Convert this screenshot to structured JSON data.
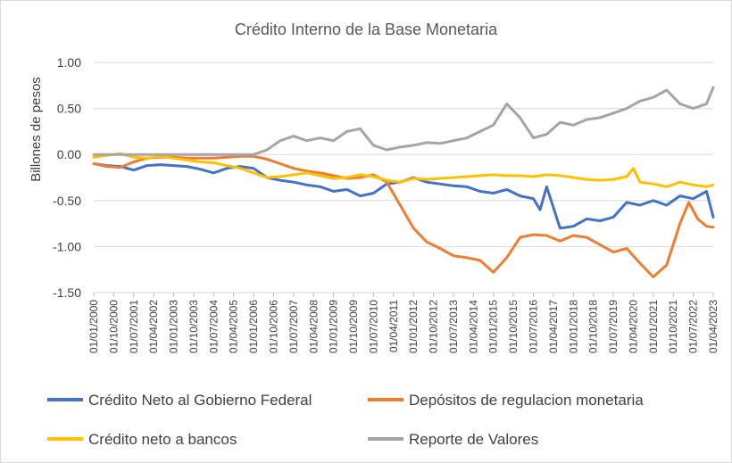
{
  "chart_data": {
    "type": "line",
    "title": "Crédito Interno de la Base Monetaria",
    "xlabel": "",
    "ylabel": "Billones de pesos",
    "ylim": [
      -1.5,
      1.0
    ],
    "yticks": [
      1.0,
      0.5,
      0.0,
      -0.5,
      -1.0,
      -1.5
    ],
    "ytick_labels": [
      "1.00",
      "0.50",
      "0.00",
      "-0.50",
      "-1.00",
      "-1.50"
    ],
    "xlim": [
      "2000-01",
      "2023-04"
    ],
    "x_tick_labels": [
      "01/01/2000",
      "01/10/2000",
      "01/07/2001",
      "01/04/2002",
      "01/01/2003",
      "01/10/2003",
      "01/07/2004",
      "01/04/2005",
      "01/01/2006",
      "01/10/2006",
      "01/07/2007",
      "01/04/2008",
      "01/01/2009",
      "01/10/2009",
      "01/07/2010",
      "01/04/2011",
      "01/01/2012",
      "01/10/2012",
      "01/07/2013",
      "01/04/2014",
      "01/01/2015",
      "01/10/2015",
      "01/07/2016",
      "01/04/2017",
      "01/01/2018",
      "01/10/2018",
      "01/07/2019",
      "01/04/2020",
      "01/01/2021",
      "01/10/2021",
      "01/07/2022",
      "01/04/2023"
    ],
    "grid": true,
    "legend_position": "bottom",
    "series": [
      {
        "name": "Crédito Neto al Gobierno Federal",
        "color": "#4472c4",
        "points": [
          [
            "2000-01",
            -0.1
          ],
          [
            "2000-07",
            -0.12
          ],
          [
            "2001-01",
            -0.13
          ],
          [
            "2001-07",
            -0.17
          ],
          [
            "2002-01",
            -0.12
          ],
          [
            "2002-07",
            -0.11
          ],
          [
            "2003-01",
            -0.12
          ],
          [
            "2003-07",
            -0.13
          ],
          [
            "2004-01",
            -0.16
          ],
          [
            "2004-07",
            -0.2
          ],
          [
            "2005-01",
            -0.15
          ],
          [
            "2005-07",
            -0.13
          ],
          [
            "2006-01",
            -0.15
          ],
          [
            "2006-07",
            -0.25
          ],
          [
            "2007-01",
            -0.28
          ],
          [
            "2007-07",
            -0.3
          ],
          [
            "2008-01",
            -0.33
          ],
          [
            "2008-07",
            -0.35
          ],
          [
            "2009-01",
            -0.4
          ],
          [
            "2009-07",
            -0.38
          ],
          [
            "2010-01",
            -0.45
          ],
          [
            "2010-07",
            -0.42
          ],
          [
            "2011-01",
            -0.32
          ],
          [
            "2011-07",
            -0.3
          ],
          [
            "2012-01",
            -0.25
          ],
          [
            "2012-07",
            -0.3
          ],
          [
            "2013-01",
            -0.32
          ],
          [
            "2013-07",
            -0.34
          ],
          [
            "2014-01",
            -0.35
          ],
          [
            "2014-07",
            -0.4
          ],
          [
            "2015-01",
            -0.42
          ],
          [
            "2015-07",
            -0.38
          ],
          [
            "2016-01",
            -0.45
          ],
          [
            "2016-07",
            -0.48
          ],
          [
            "2016-10",
            -0.6
          ],
          [
            "2017-01",
            -0.35
          ],
          [
            "2017-07",
            -0.8
          ],
          [
            "2018-01",
            -0.78
          ],
          [
            "2018-07",
            -0.7
          ],
          [
            "2019-01",
            -0.72
          ],
          [
            "2019-07",
            -0.68
          ],
          [
            "2020-01",
            -0.52
          ],
          [
            "2020-07",
            -0.55
          ],
          [
            "2021-01",
            -0.5
          ],
          [
            "2021-07",
            -0.55
          ],
          [
            "2022-01",
            -0.45
          ],
          [
            "2022-07",
            -0.48
          ],
          [
            "2023-01",
            -0.4
          ],
          [
            "2023-04",
            -0.68
          ]
        ]
      },
      {
        "name": "Depósitos de regulacion monetaria",
        "color": "#ed7d31",
        "points": [
          [
            "2000-01",
            -0.1
          ],
          [
            "2000-07",
            -0.13
          ],
          [
            "2001-01",
            -0.14
          ],
          [
            "2001-07",
            -0.08
          ],
          [
            "2002-01",
            -0.04
          ],
          [
            "2002-07",
            -0.03
          ],
          [
            "2003-01",
            -0.03
          ],
          [
            "2003-07",
            -0.04
          ],
          [
            "2004-01",
            -0.04
          ],
          [
            "2004-07",
            -0.04
          ],
          [
            "2005-01",
            -0.03
          ],
          [
            "2005-07",
            -0.02
          ],
          [
            "2006-01",
            -0.02
          ],
          [
            "2006-07",
            -0.05
          ],
          [
            "2007-01",
            -0.1
          ],
          [
            "2007-07",
            -0.15
          ],
          [
            "2008-01",
            -0.18
          ],
          [
            "2008-07",
            -0.2
          ],
          [
            "2009-01",
            -0.23
          ],
          [
            "2009-07",
            -0.26
          ],
          [
            "2010-01",
            -0.25
          ],
          [
            "2010-07",
            -0.22
          ],
          [
            "2011-01",
            -0.3
          ],
          [
            "2011-07",
            -0.55
          ],
          [
            "2012-01",
            -0.8
          ],
          [
            "2012-07",
            -0.95
          ],
          [
            "2013-01",
            -1.02
          ],
          [
            "2013-07",
            -1.1
          ],
          [
            "2014-01",
            -1.12
          ],
          [
            "2014-07",
            -1.15
          ],
          [
            "2015-01",
            -1.28
          ],
          [
            "2015-07",
            -1.12
          ],
          [
            "2016-01",
            -0.9
          ],
          [
            "2016-07",
            -0.87
          ],
          [
            "2017-01",
            -0.88
          ],
          [
            "2017-07",
            -0.94
          ],
          [
            "2018-01",
            -0.88
          ],
          [
            "2018-07",
            -0.9
          ],
          [
            "2019-01",
            -0.98
          ],
          [
            "2019-07",
            -1.06
          ],
          [
            "2020-01",
            -1.02
          ],
          [
            "2020-07",
            -1.18
          ],
          [
            "2021-01",
            -1.33
          ],
          [
            "2021-07",
            -1.2
          ],
          [
            "2022-01",
            -0.75
          ],
          [
            "2022-05",
            -0.52
          ],
          [
            "2022-09",
            -0.7
          ],
          [
            "2023-01",
            -0.78
          ],
          [
            "2023-04",
            -0.79
          ]
        ]
      },
      {
        "name": "Crédito neto a bancos",
        "color": "#ffc000",
        "points": [
          [
            "2000-01",
            -0.03
          ],
          [
            "2000-07",
            -0.01
          ],
          [
            "2001-01",
            0.01
          ],
          [
            "2001-07",
            -0.03
          ],
          [
            "2002-01",
            -0.04
          ],
          [
            "2002-07",
            -0.02
          ],
          [
            "2003-01",
            -0.04
          ],
          [
            "2003-07",
            -0.06
          ],
          [
            "2004-01",
            -0.08
          ],
          [
            "2004-07",
            -0.09
          ],
          [
            "2005-01",
            -0.12
          ],
          [
            "2005-07",
            -0.15
          ],
          [
            "2006-01",
            -0.2
          ],
          [
            "2006-07",
            -0.25
          ],
          [
            "2007-01",
            -0.24
          ],
          [
            "2007-07",
            -0.22
          ],
          [
            "2008-01",
            -0.2
          ],
          [
            "2008-07",
            -0.23
          ],
          [
            "2009-01",
            -0.26
          ],
          [
            "2009-07",
            -0.25
          ],
          [
            "2010-01",
            -0.22
          ],
          [
            "2010-07",
            -0.24
          ],
          [
            "2011-01",
            -0.28
          ],
          [
            "2011-07",
            -0.3
          ],
          [
            "2012-01",
            -0.26
          ],
          [
            "2012-07",
            -0.27
          ],
          [
            "2013-01",
            -0.26
          ],
          [
            "2013-07",
            -0.25
          ],
          [
            "2014-01",
            -0.24
          ],
          [
            "2014-07",
            -0.23
          ],
          [
            "2015-01",
            -0.22
          ],
          [
            "2015-07",
            -0.23
          ],
          [
            "2016-01",
            -0.23
          ],
          [
            "2016-07",
            -0.24
          ],
          [
            "2017-01",
            -0.22
          ],
          [
            "2017-07",
            -0.23
          ],
          [
            "2018-01",
            -0.25
          ],
          [
            "2018-07",
            -0.27
          ],
          [
            "2019-01",
            -0.28
          ],
          [
            "2019-07",
            -0.27
          ],
          [
            "2020-01",
            -0.24
          ],
          [
            "2020-04",
            -0.15
          ],
          [
            "2020-07",
            -0.3
          ],
          [
            "2021-01",
            -0.32
          ],
          [
            "2021-07",
            -0.35
          ],
          [
            "2022-01",
            -0.3
          ],
          [
            "2022-07",
            -0.33
          ],
          [
            "2023-01",
            -0.35
          ],
          [
            "2023-04",
            -0.33
          ]
        ]
      },
      {
        "name": "Reporte de Valores",
        "color": "#a5a5a5",
        "points": [
          [
            "2000-01",
            0.0
          ],
          [
            "2001-01",
            0.0
          ],
          [
            "2002-01",
            0.0
          ],
          [
            "2003-01",
            0.0
          ],
          [
            "2004-01",
            0.0
          ],
          [
            "2005-01",
            0.0
          ],
          [
            "2006-01",
            0.0
          ],
          [
            "2006-07",
            0.05
          ],
          [
            "2007-01",
            0.15
          ],
          [
            "2007-07",
            0.2
          ],
          [
            "2008-01",
            0.15
          ],
          [
            "2008-07",
            0.18
          ],
          [
            "2009-01",
            0.15
          ],
          [
            "2009-07",
            0.25
          ],
          [
            "2010-01",
            0.28
          ],
          [
            "2010-07",
            0.1
          ],
          [
            "2011-01",
            0.05
          ],
          [
            "2011-07",
            0.08
          ],
          [
            "2012-01",
            0.1
          ],
          [
            "2012-07",
            0.13
          ],
          [
            "2013-01",
            0.12
          ],
          [
            "2013-07",
            0.15
          ],
          [
            "2014-01",
            0.18
          ],
          [
            "2014-07",
            0.25
          ],
          [
            "2015-01",
            0.32
          ],
          [
            "2015-07",
            0.55
          ],
          [
            "2016-01",
            0.4
          ],
          [
            "2016-07",
            0.18
          ],
          [
            "2017-01",
            0.22
          ],
          [
            "2017-07",
            0.35
          ],
          [
            "2018-01",
            0.32
          ],
          [
            "2018-07",
            0.38
          ],
          [
            "2019-01",
            0.4
          ],
          [
            "2019-07",
            0.45
          ],
          [
            "2020-01",
            0.5
          ],
          [
            "2020-07",
            0.58
          ],
          [
            "2021-01",
            0.62
          ],
          [
            "2021-07",
            0.7
          ],
          [
            "2022-01",
            0.55
          ],
          [
            "2022-07",
            0.5
          ],
          [
            "2023-01",
            0.55
          ],
          [
            "2023-04",
            0.73
          ]
        ]
      }
    ]
  }
}
